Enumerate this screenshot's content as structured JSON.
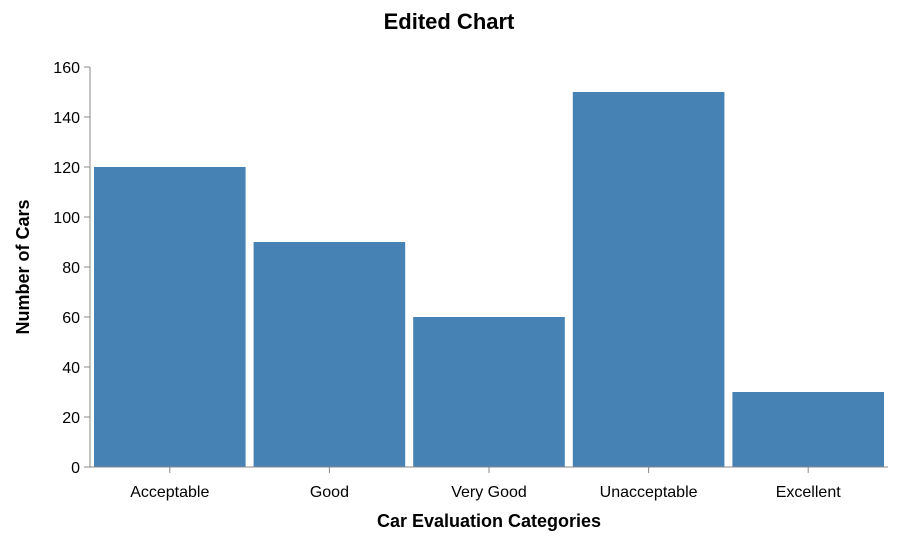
{
  "chart_data": {
    "type": "bar",
    "title": "Edited Chart",
    "xlabel": "Car Evaluation Categories",
    "ylabel": "Number of Cars",
    "categories": [
      "Acceptable",
      "Good",
      "Very Good",
      "Unacceptable",
      "Excellent"
    ],
    "values": [
      120,
      90,
      60,
      150,
      30
    ],
    "ylim": [
      0,
      160
    ],
    "yticks": [
      0,
      20,
      40,
      60,
      80,
      100,
      120,
      140,
      160
    ],
    "grid": false,
    "bar_color": "#4682b4",
    "axis_color": "#888888"
  }
}
